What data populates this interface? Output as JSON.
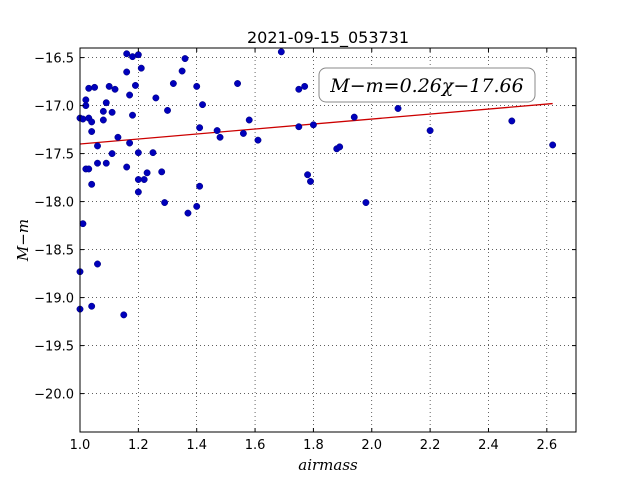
{
  "chart_data": {
    "type": "scatter",
    "title": "2021-09-15_053731",
    "xlabel": "airmass",
    "ylabel": "M−m",
    "annotation": "M−m=0.26χ−17.66",
    "xlim": [
      1.0,
      2.7
    ],
    "ylim": [
      -20.4,
      -16.4
    ],
    "y_inverted": true,
    "xticks": [
      "1.0",
      "1.2",
      "1.4",
      "1.6",
      "1.8",
      "2.0",
      "2.2",
      "2.4",
      "2.6"
    ],
    "yticks": [
      "−16.5",
      "−17.0",
      "−17.5",
      "−18.0",
      "−18.5",
      "−19.0",
      "−19.5",
      "−20.0"
    ],
    "grid": true,
    "fit": {
      "slope": 0.26,
      "intercept": -17.66,
      "x_range": [
        1.0,
        2.62
      ],
      "color": "#cc0000"
    },
    "point_color": "#0000bb",
    "points": [
      [
        1.0,
        -18.73
      ],
      [
        1.0,
        -19.12
      ],
      [
        1.0,
        -17.13
      ],
      [
        1.01,
        -18.23
      ],
      [
        1.01,
        -17.14
      ],
      [
        1.02,
        -17.0
      ],
      [
        1.02,
        -16.94
      ],
      [
        1.02,
        -17.66
      ],
      [
        1.03,
        -17.66
      ],
      [
        1.03,
        -17.13
      ],
      [
        1.03,
        -16.82
      ],
      [
        1.04,
        -17.17
      ],
      [
        1.04,
        -17.27
      ],
      [
        1.04,
        -17.82
      ],
      [
        1.04,
        -19.09
      ],
      [
        1.05,
        -16.81
      ],
      [
        1.06,
        -17.6
      ],
      [
        1.06,
        -17.42
      ],
      [
        1.06,
        -18.65
      ],
      [
        1.08,
        -17.06
      ],
      [
        1.08,
        -17.15
      ],
      [
        1.09,
        -16.97
      ],
      [
        1.09,
        -17.6
      ],
      [
        1.1,
        -16.8
      ],
      [
        1.11,
        -17.07
      ],
      [
        1.11,
        -17.5
      ],
      [
        1.12,
        -16.83
      ],
      [
        1.13,
        -17.33
      ],
      [
        1.15,
        -19.18
      ],
      [
        1.16,
        -16.46
      ],
      [
        1.16,
        -16.65
      ],
      [
        1.16,
        -17.64
      ],
      [
        1.17,
        -17.39
      ],
      [
        1.17,
        -16.89
      ],
      [
        1.18,
        -17.1
      ],
      [
        1.18,
        -16.49
      ],
      [
        1.19,
        -16.79
      ],
      [
        1.2,
        -16.47
      ],
      [
        1.2,
        -17.49
      ],
      [
        1.2,
        -17.77
      ],
      [
        1.2,
        -17.9
      ],
      [
        1.21,
        -16.61
      ],
      [
        1.22,
        -17.77
      ],
      [
        1.23,
        -17.7
      ],
      [
        1.25,
        -17.49
      ],
      [
        1.26,
        -16.92
      ],
      [
        1.28,
        -17.69
      ],
      [
        1.29,
        -18.01
      ],
      [
        1.3,
        -17.05
      ],
      [
        1.32,
        -16.77
      ],
      [
        1.35,
        -16.64
      ],
      [
        1.36,
        -16.51
      ],
      [
        1.37,
        -18.12
      ],
      [
        1.4,
        -16.8
      ],
      [
        1.4,
        -18.05
      ],
      [
        1.41,
        -17.23
      ],
      [
        1.41,
        -17.84
      ],
      [
        1.42,
        -16.99
      ],
      [
        1.47,
        -17.26
      ],
      [
        1.48,
        -17.33
      ],
      [
        1.54,
        -16.77
      ],
      [
        1.56,
        -17.29
      ],
      [
        1.58,
        -17.15
      ],
      [
        1.61,
        -17.36
      ],
      [
        1.69,
        -16.44
      ],
      [
        1.75,
        -16.83
      ],
      [
        1.75,
        -17.22
      ],
      [
        1.77,
        -16.8
      ],
      [
        1.78,
        -17.72
      ],
      [
        1.79,
        -17.79
      ],
      [
        1.8,
        -17.2
      ],
      [
        1.88,
        -17.45
      ],
      [
        1.89,
        -17.43
      ],
      [
        1.94,
        -17.12
      ],
      [
        1.98,
        -18.01
      ],
      [
        2.09,
        -17.03
      ],
      [
        2.2,
        -17.26
      ],
      [
        2.48,
        -17.16
      ],
      [
        2.62,
        -17.41
      ]
    ]
  }
}
